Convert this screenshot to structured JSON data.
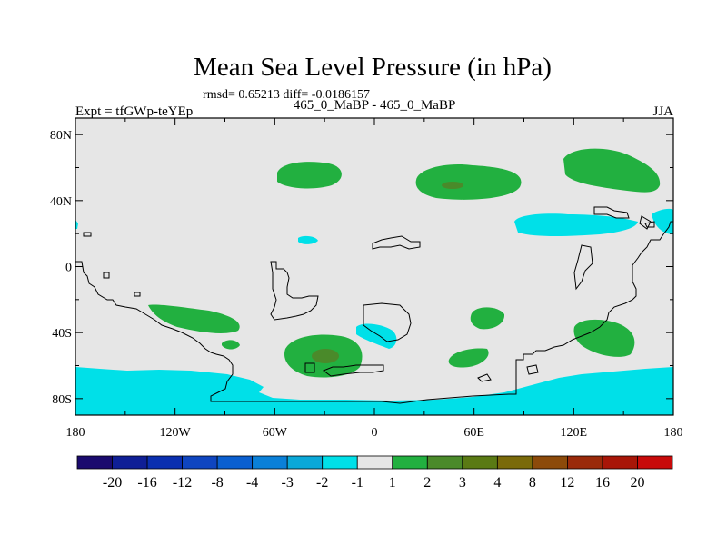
{
  "chart_data": {
    "type": "heatmap",
    "title": "Mean Sea Level Pressure (in hPa)",
    "stats_line": "rmsd= 0.65213  diff= -0.0186157",
    "left_label": "Expt = tfGWp-teYEp",
    "center_label": "465_0_MaBP - 465_0_MaBP",
    "right_label": "JJA",
    "x_ticks": [
      {
        "lon": -180,
        "label": "180"
      },
      {
        "lon": -120,
        "label": "120W"
      },
      {
        "lon": -60,
        "label": "60W"
      },
      {
        "lon": 0,
        "label": "0"
      },
      {
        "lon": 60,
        "label": "60E"
      },
      {
        "lon": 120,
        "label": "120E"
      },
      {
        "lon": 180,
        "label": "180"
      }
    ],
    "y_ticks": [
      {
        "lat": 80,
        "label": "80N"
      },
      {
        "lat": 40,
        "label": "40N"
      },
      {
        "lat": 0,
        "label": "0"
      },
      {
        "lat": -40,
        "label": "40S"
      },
      {
        "lat": -80,
        "label": "80S"
      }
    ],
    "xlim": [
      -180,
      180
    ],
    "ylim": [
      -90,
      90
    ],
    "colorbar": {
      "labels": [
        "-20",
        "-16",
        "-12",
        "-8",
        "-4",
        "-3",
        "-2",
        "-1",
        "1",
        "2",
        "3",
        "4",
        "8",
        "12",
        "16",
        "20"
      ],
      "colors": [
        "#1a0a6e",
        "#0f1f96",
        "#0a2fb0",
        "#0f45c0",
        "#0a5fd0",
        "#0a80d8",
        "#0aa8d8",
        "#00e0e8",
        "#e6e6e6",
        "#22b040",
        "#4a8a2a",
        "#5a7a14",
        "#7a6a0a",
        "#8c4a0a",
        "#9a2a0a",
        "#a81608",
        "#c80a0a"
      ]
    },
    "anomaly_regions": [
      {
        "level": "1 to 2",
        "color": "#22b040",
        "center_lon": -45,
        "center_lat": 58,
        "desc": "positive"
      },
      {
        "level": "1 to 2",
        "color": "#22b040",
        "center_lon": 50,
        "center_lat": 50,
        "desc": "positive"
      },
      {
        "level": "2 to 3",
        "color": "#4a8a2a",
        "center_lon": 48,
        "center_lat": 50,
        "desc": "positive"
      },
      {
        "level": "1 to 2",
        "color": "#22b040",
        "center_lon": 145,
        "center_lat": 58,
        "desc": "positive"
      },
      {
        "level": "-2 to -1",
        "color": "#00e0e8",
        "center_lon": 130,
        "center_lat": 25,
        "desc": "negative"
      },
      {
        "level": "1 to 2",
        "color": "#22b040",
        "center_lon": -115,
        "center_lat": -30,
        "desc": "positive"
      },
      {
        "level": "1 to 2",
        "color": "#22b040",
        "center_lon": -30,
        "center_lat": -52,
        "desc": "positive"
      },
      {
        "level": "2 to 3",
        "color": "#4a8a2a",
        "center_lon": -28,
        "center_lat": -52,
        "desc": "positive"
      },
      {
        "level": "1 to 2",
        "color": "#22b040",
        "center_lon": 75,
        "center_lat": -30,
        "desc": "positive"
      },
      {
        "level": "1 to 2",
        "color": "#22b040",
        "center_lon": 140,
        "center_lat": -42,
        "desc": "positive"
      },
      {
        "level": "-2 to -1",
        "color": "#00e0e8",
        "center_lon": 5,
        "center_lat": -40,
        "desc": "negative"
      },
      {
        "level": "-2 to -1",
        "color": "#00e0e8",
        "center_lon": 0,
        "center_lat": -80,
        "desc": "negative"
      }
    ]
  }
}
